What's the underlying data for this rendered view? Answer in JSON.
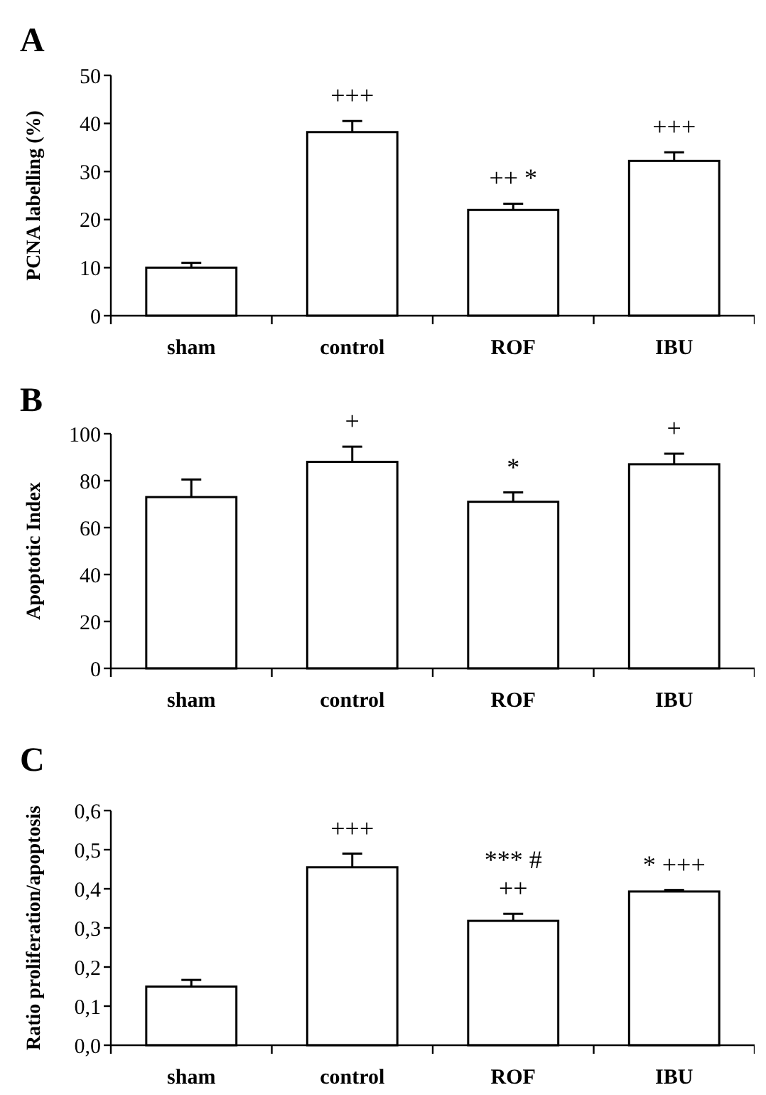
{
  "chart_data": [
    {
      "type": "bar",
      "title": "A",
      "ylabel": "PCNA labelling (%)",
      "categories": [
        "sham",
        "control",
        "ROF",
        "IBU"
      ],
      "values": [
        10,
        38.2,
        22,
        32.2
      ],
      "errors": [
        [
          10,
          11
        ],
        [
          38.2,
          40.5
        ],
        [
          22,
          23.3
        ],
        [
          32.2,
          34
        ]
      ],
      "color": "#ffffff",
      "ylim": [
        0,
        50
      ],
      "yticks": [
        0,
        10,
        20,
        30,
        40,
        50
      ],
      "grid": false,
      "annotations": [
        {
          "text": "+++",
          "x": "control",
          "y": 40.5
        },
        {
          "text": "++ *",
          "x": "ROF",
          "y": 23.3
        },
        {
          "text": "+++",
          "x": "IBU",
          "y": 34
        }
      ]
    },
    {
      "type": "bar",
      "title": "B",
      "ylabel": "Apoptotic Index",
      "categories": [
        "sham",
        "control",
        "ROF",
        "IBU"
      ],
      "values": [
        73,
        88,
        71,
        87
      ],
      "errors": [
        [
          73,
          80.5
        ],
        [
          88,
          94.5
        ],
        [
          71,
          75
        ],
        [
          87,
          91.5
        ]
      ],
      "color": "#ffffff",
      "ylim": [
        0,
        100
      ],
      "yticks": [
        0,
        20,
        40,
        60,
        80,
        100
      ],
      "grid": false,
      "annotations": [
        {
          "text": "+",
          "x": "control",
          "y": 94.5
        },
        {
          "text": "*",
          "x": "ROF",
          "y": 75
        },
        {
          "text": "+",
          "x": "IBU",
          "y": 91.5
        }
      ]
    },
    {
      "type": "bar",
      "title": "C",
      "ylabel": "Ratio proliferation/apoptosis",
      "categories": [
        "sham",
        "control",
        "ROF",
        "IBU"
      ],
      "values": [
        0.15,
        0.455,
        0.318,
        0.393
      ],
      "errors": [
        [
          0.15,
          0.167
        ],
        [
          0.455,
          0.49
        ],
        [
          0.318,
          0.336
        ],
        [
          0.393,
          0.397
        ]
      ],
      "color": "#ffffff",
      "ylim": [
        0,
        0.6
      ],
      "yticks": [
        {
          "value": 0,
          "label": "0,0"
        },
        {
          "value": 0.1,
          "label": "0,1"
        },
        {
          "value": 0.2,
          "label": "0,2"
        },
        {
          "value": 0.3,
          "label": "0,3"
        },
        {
          "value": 0.4,
          "label": "0,4"
        },
        {
          "value": 0.5,
          "label": "0,5"
        },
        {
          "value": 0.6,
          "label": "0,6"
        }
      ],
      "grid": false,
      "annotations": [
        {
          "text": "+++",
          "x": "control",
          "y": 0.49
        },
        {
          "text": "++",
          "x": "ROF",
          "y": 0.336
        },
        {
          "text": "*** #",
          "x": "ROF",
          "y": 0.336
        },
        {
          "text": "* +++",
          "x": "IBU",
          "y": 0.397
        }
      ]
    }
  ]
}
